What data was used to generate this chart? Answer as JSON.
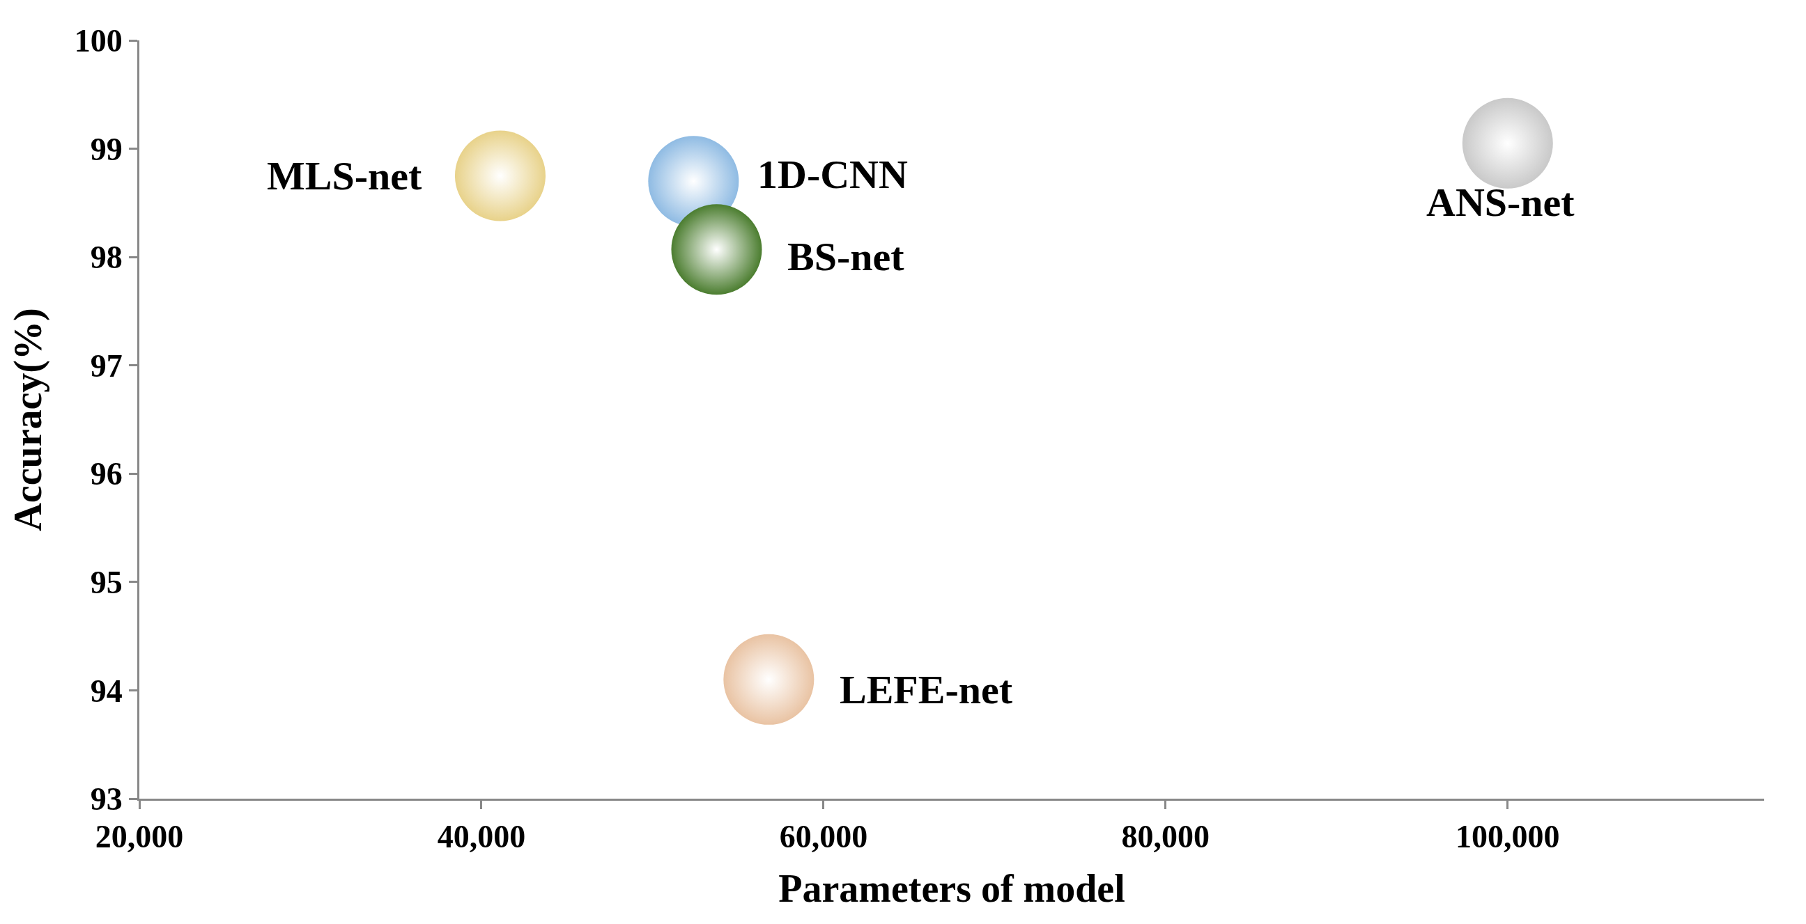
{
  "chart_data": {
    "type": "bubble",
    "xlabel": "Parameters of model",
    "ylabel": "Accuracy(%)",
    "x": [
      41100,
      52400,
      53750,
      100000,
      56800
    ],
    "values": [
      98.75,
      98.7,
      98.07,
      99.05,
      94.1
    ],
    "sizes": [
      1,
      1,
      1,
      1,
      1
    ],
    "colors": [
      "#e8d28a",
      "#8fbbe3",
      "#4b7d2f",
      "#c9c9c9",
      "#e9c3a3"
    ],
    "xlim": [
      20000,
      115000
    ],
    "xticks": [
      {
        "value": 20000,
        "label": "20,000"
      },
      {
        "value": 40000,
        "label": "40,000"
      },
      {
        "value": 60000,
        "label": "60,000"
      },
      {
        "value": 80000,
        "label": "80,000"
      },
      {
        "value": 100000,
        "label": "100,000"
      }
    ],
    "ylim": [
      93,
      100
    ],
    "yticks": [
      93,
      94,
      95,
      96,
      97,
      98,
      99,
      100
    ],
    "annotations": [
      {
        "text": "MLS-net",
        "x": 41100,
        "y": 98.75
      },
      {
        "text": "1D-CNN",
        "x": 52400,
        "y": 98.7
      },
      {
        "text": "BS-net",
        "x": 53750,
        "y": 98.07
      },
      {
        "text": "ANS-net",
        "x": 100000,
        "y": 99.05
      },
      {
        "text": "LEFE-net",
        "x": 56800,
        "y": 94.1
      }
    ]
  }
}
